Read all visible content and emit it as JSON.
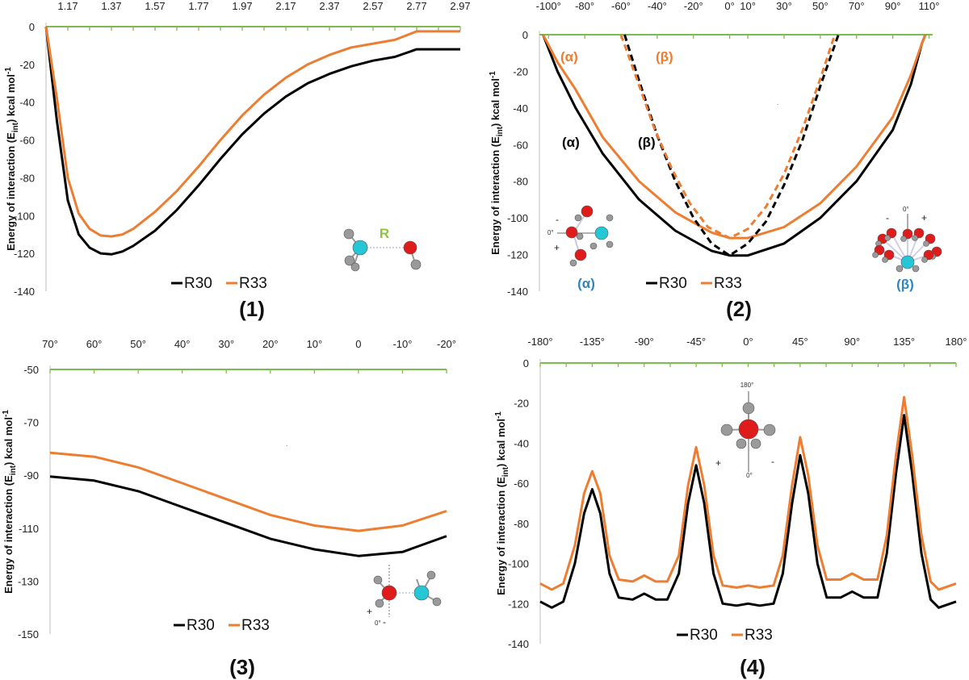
{
  "figure": {
    "ylabel": "Energy of interaction (E",
    "ylabel_sub": "int",
    "ylabel_tail": ") kcal mol",
    "ylabel_sup": "-1"
  },
  "colors": {
    "R30": "#000000",
    "R33": "#ed7d31",
    "axis": "#7fba4e",
    "blue": "#2e86c1"
  },
  "chart_data": [
    {
      "id": "1",
      "panel_label": "(1)",
      "type": "line",
      "xlim": [
        1.07,
        2.97
      ],
      "ylim": [
        -140,
        0
      ],
      "x_ticks": [
        1.17,
        1.37,
        1.57,
        1.77,
        1.97,
        2.17,
        2.37,
        2.57,
        2.77,
        2.97
      ],
      "x_tick_labels": [
        "1.17",
        "1.37",
        "1.57",
        "1.77",
        "1.97",
        "2.17",
        "2.37",
        "2.57",
        "2.77",
        "2.97"
      ],
      "y_ticks": [
        0,
        -20,
        -40,
        -60,
        -80,
        -100,
        -120,
        -140
      ],
      "legend": [
        "R30",
        "R33"
      ],
      "annotations": {
        "bond": "R"
      },
      "series": [
        {
          "name": "R30",
          "points": [
            [
              1.07,
              0
            ],
            [
              1.12,
              -50
            ],
            [
              1.17,
              -92
            ],
            [
              1.22,
              -110
            ],
            [
              1.27,
              -117
            ],
            [
              1.32,
              -120
            ],
            [
              1.37,
              -120.5
            ],
            [
              1.42,
              -119
            ],
            [
              1.47,
              -116
            ],
            [
              1.57,
              -108
            ],
            [
              1.67,
              -97
            ],
            [
              1.77,
              -84
            ],
            [
              1.87,
              -70
            ],
            [
              1.97,
              -57
            ],
            [
              2.07,
              -46
            ],
            [
              2.17,
              -37
            ],
            [
              2.27,
              -30
            ],
            [
              2.37,
              -25
            ],
            [
              2.47,
              -21
            ],
            [
              2.57,
              -18
            ],
            [
              2.67,
              -16
            ],
            [
              2.77,
              -12
            ],
            [
              2.87,
              -12
            ],
            [
              2.97,
              -12
            ]
          ]
        },
        {
          "name": "R33",
          "points": [
            [
              1.07,
              0
            ],
            [
              1.12,
              -38
            ],
            [
              1.17,
              -80
            ],
            [
              1.22,
              -99
            ],
            [
              1.27,
              -107
            ],
            [
              1.32,
              -110.5
            ],
            [
              1.37,
              -111
            ],
            [
              1.42,
              -110
            ],
            [
              1.47,
              -107
            ],
            [
              1.57,
              -98
            ],
            [
              1.67,
              -87
            ],
            [
              1.77,
              -74
            ],
            [
              1.87,
              -60
            ],
            [
              1.97,
              -47
            ],
            [
              2.07,
              -36
            ],
            [
              2.17,
              -27
            ],
            [
              2.27,
              -20
            ],
            [
              2.37,
              -15
            ],
            [
              2.47,
              -11
            ],
            [
              2.57,
              -9
            ],
            [
              2.67,
              -7
            ],
            [
              2.77,
              -2.5
            ],
            [
              2.87,
              -2.5
            ],
            [
              2.97,
              -2.5
            ]
          ]
        }
      ]
    },
    {
      "id": "2",
      "panel_label": "(2)",
      "type": "line",
      "xlim": [
        -105,
        112
      ],
      "ylim": [
        -140,
        0
      ],
      "x_ticks": [
        -100,
        -80,
        -60,
        -40,
        -20,
        0,
        10,
        30,
        50,
        70,
        90,
        110
      ],
      "x_tick_labels": [
        "-100°",
        "-80°",
        "-60°",
        "-40°",
        "-20°",
        "0°",
        "10°",
        "30°",
        "50°",
        "70°",
        "90°",
        "110°"
      ],
      "y_ticks": [
        0,
        -20,
        -40,
        -60,
        -80,
        -100,
        -120,
        -140
      ],
      "legend": [
        "R30",
        "R33"
      ],
      "annotations": {
        "alpha": "(α)",
        "beta": "(β)",
        "plus": "+",
        "minus": "-",
        "zero": "0°"
      },
      "series": [
        {
          "name": "R30 (α)",
          "dash": false,
          "color": "R30",
          "points": [
            [
              -103,
              0
            ],
            [
              -95,
              -20
            ],
            [
              -85,
              -40
            ],
            [
              -70,
              -65
            ],
            [
              -50,
              -90
            ],
            [
              -30,
              -107
            ],
            [
              -10,
              -118
            ],
            [
              0,
              -120.5
            ],
            [
              10,
              -120.5
            ],
            [
              30,
              -114
            ],
            [
              50,
              -100
            ],
            [
              70,
              -80
            ],
            [
              90,
              -52
            ],
            [
              100,
              -27
            ],
            [
              106,
              -5
            ],
            [
              108,
              0
            ]
          ]
        },
        {
          "name": "R33 (α)",
          "dash": false,
          "color": "R33",
          "points": [
            [
              -103,
              0
            ],
            [
              -95,
              -15
            ],
            [
              -85,
              -30
            ],
            [
              -70,
              -56
            ],
            [
              -50,
              -80
            ],
            [
              -30,
              -97
            ],
            [
              -10,
              -108
            ],
            [
              0,
              -111
            ],
            [
              10,
              -111
            ],
            [
              30,
              -105
            ],
            [
              50,
              -92
            ],
            [
              70,
              -72
            ],
            [
              90,
              -45
            ],
            [
              100,
              -22
            ],
            [
              106,
              -5
            ],
            [
              108,
              0
            ]
          ]
        },
        {
          "name": "R30 (β)",
          "dash": true,
          "color": "R30",
          "points": [
            [
              -58,
              0
            ],
            [
              -50,
              -25
            ],
            [
              -40,
              -55
            ],
            [
              -30,
              -80
            ],
            [
              -20,
              -100
            ],
            [
              -10,
              -114
            ],
            [
              0,
              -120.5
            ],
            [
              10,
              -114
            ],
            [
              20,
              -102
            ],
            [
              30,
              -82
            ],
            [
              40,
              -58
            ],
            [
              50,
              -28
            ],
            [
              60,
              0
            ]
          ]
        },
        {
          "name": "R33 (β)",
          "dash": true,
          "color": "R33",
          "points": [
            [
              -60,
              0
            ],
            [
              -52,
              -22
            ],
            [
              -42,
              -50
            ],
            [
              -32,
              -73
            ],
            [
              -22,
              -92
            ],
            [
              -12,
              -105
            ],
            [
              0,
              -111
            ],
            [
              10,
              -106
            ],
            [
              20,
              -94
            ],
            [
              30,
              -76
            ],
            [
              40,
              -52
            ],
            [
              50,
              -24
            ],
            [
              58,
              0
            ]
          ]
        }
      ]
    },
    {
      "id": "3",
      "panel_label": "(3)",
      "type": "line",
      "xlim": [
        70,
        -20
      ],
      "ylim": [
        -150,
        -50
      ],
      "x_ticks": [
        70,
        60,
        50,
        40,
        30,
        20,
        10,
        0,
        -10,
        -20
      ],
      "x_tick_labels": [
        "70°",
        "60°",
        "50°",
        "40°",
        "30°",
        "20°",
        "10°",
        "0",
        "-10°",
        "-20°"
      ],
      "y_ticks": [
        -50,
        -70,
        -90,
        -110,
        -130,
        -150
      ],
      "legend": [
        "R30",
        "R33"
      ],
      "annotations": {
        "plus": "+",
        "zero": "0°",
        "minus": "-"
      },
      "series": [
        {
          "name": "R30",
          "points": [
            [
              70,
              -90.5
            ],
            [
              60,
              -92
            ],
            [
              50,
              -96
            ],
            [
              40,
              -102
            ],
            [
              30,
              -108
            ],
            [
              20,
              -114
            ],
            [
              10,
              -118
            ],
            [
              0,
              -120.5
            ],
            [
              -10,
              -119
            ],
            [
              -20,
              -113
            ]
          ]
        },
        {
          "name": "R33",
          "points": [
            [
              70,
              -81.5
            ],
            [
              60,
              -83
            ],
            [
              50,
              -87
            ],
            [
              40,
              -93
            ],
            [
              30,
              -99
            ],
            [
              20,
              -105
            ],
            [
              10,
              -109
            ],
            [
              0,
              -111
            ],
            [
              -10,
              -109
            ],
            [
              -20,
              -103.5
            ]
          ]
        }
      ]
    },
    {
      "id": "4",
      "panel_label": "(4)",
      "type": "line",
      "xlim": [
        -180,
        180
      ],
      "ylim": [
        -140,
        0
      ],
      "x_ticks": [
        -180,
        -135,
        -90,
        -45,
        0,
        45,
        90,
        135,
        180
      ],
      "x_tick_labels": [
        "-180°",
        "-135°",
        "-90°",
        "-45°",
        "0°",
        "45°",
        "90°",
        "135°",
        "180°"
      ],
      "y_ticks": [
        0,
        -20,
        -40,
        -60,
        -80,
        -100,
        -120,
        -140
      ],
      "legend": [
        "R30",
        "R33"
      ],
      "annotations": {
        "top": "180°",
        "bottom": "0°",
        "plus": "+",
        "minus": "-"
      },
      "series": [
        {
          "name": "R30",
          "points": [
            [
              -180,
              -119
            ],
            [
              -170,
              -122
            ],
            [
              -160,
              -119
            ],
            [
              -150,
              -100
            ],
            [
              -142,
              -75
            ],
            [
              -135,
              -63
            ],
            [
              -128,
              -75
            ],
            [
              -120,
              -105
            ],
            [
              -112,
              -117
            ],
            [
              -100,
              -118
            ],
            [
              -90,
              -115
            ],
            [
              -80,
              -118
            ],
            [
              -70,
              -118
            ],
            [
              -60,
              -105
            ],
            [
              -52,
              -70
            ],
            [
              -45,
              -51
            ],
            [
              -38,
              -70
            ],
            [
              -30,
              -105
            ],
            [
              -22,
              -120
            ],
            [
              -10,
              -121
            ],
            [
              0,
              -120
            ],
            [
              10,
              -121
            ],
            [
              22,
              -120
            ],
            [
              30,
              -105
            ],
            [
              38,
              -70
            ],
            [
              45,
              -46
            ],
            [
              52,
              -65
            ],
            [
              60,
              -100
            ],
            [
              68,
              -117
            ],
            [
              80,
              -117
            ],
            [
              90,
              -114
            ],
            [
              100,
              -117
            ],
            [
              112,
              -117
            ],
            [
              120,
              -95
            ],
            [
              128,
              -55
            ],
            [
              135,
              -26
            ],
            [
              142,
              -55
            ],
            [
              150,
              -95
            ],
            [
              158,
              -118
            ],
            [
              165,
              -122
            ],
            [
              180,
              -119
            ]
          ]
        },
        {
          "name": "R33",
          "points": [
            [
              -180,
              -110
            ],
            [
              -170,
              -113
            ],
            [
              -160,
              -110
            ],
            [
              -150,
              -91
            ],
            [
              -142,
              -65
            ],
            [
              -135,
              -54
            ],
            [
              -128,
              -65
            ],
            [
              -120,
              -96
            ],
            [
              -112,
              -108
            ],
            [
              -100,
              -109
            ],
            [
              -90,
              -106
            ],
            [
              -80,
              -109
            ],
            [
              -70,
              -109
            ],
            [
              -60,
              -96
            ],
            [
              -52,
              -61
            ],
            [
              -45,
              -42
            ],
            [
              -38,
              -61
            ],
            [
              -30,
              -96
            ],
            [
              -22,
              -111
            ],
            [
              -10,
              -112
            ],
            [
              0,
              -111
            ],
            [
              10,
              -112
            ],
            [
              22,
              -111
            ],
            [
              30,
              -96
            ],
            [
              38,
              -61
            ],
            [
              45,
              -37
            ],
            [
              52,
              -56
            ],
            [
              60,
              -91
            ],
            [
              68,
              -108
            ],
            [
              80,
              -108
            ],
            [
              90,
              -105
            ],
            [
              100,
              -108
            ],
            [
              112,
              -108
            ],
            [
              120,
              -86
            ],
            [
              128,
              -46
            ],
            [
              135,
              -17
            ],
            [
              142,
              -46
            ],
            [
              150,
              -86
            ],
            [
              158,
              -109
            ],
            [
              165,
              -113
            ],
            [
              180,
              -110
            ]
          ]
        }
      ]
    }
  ]
}
